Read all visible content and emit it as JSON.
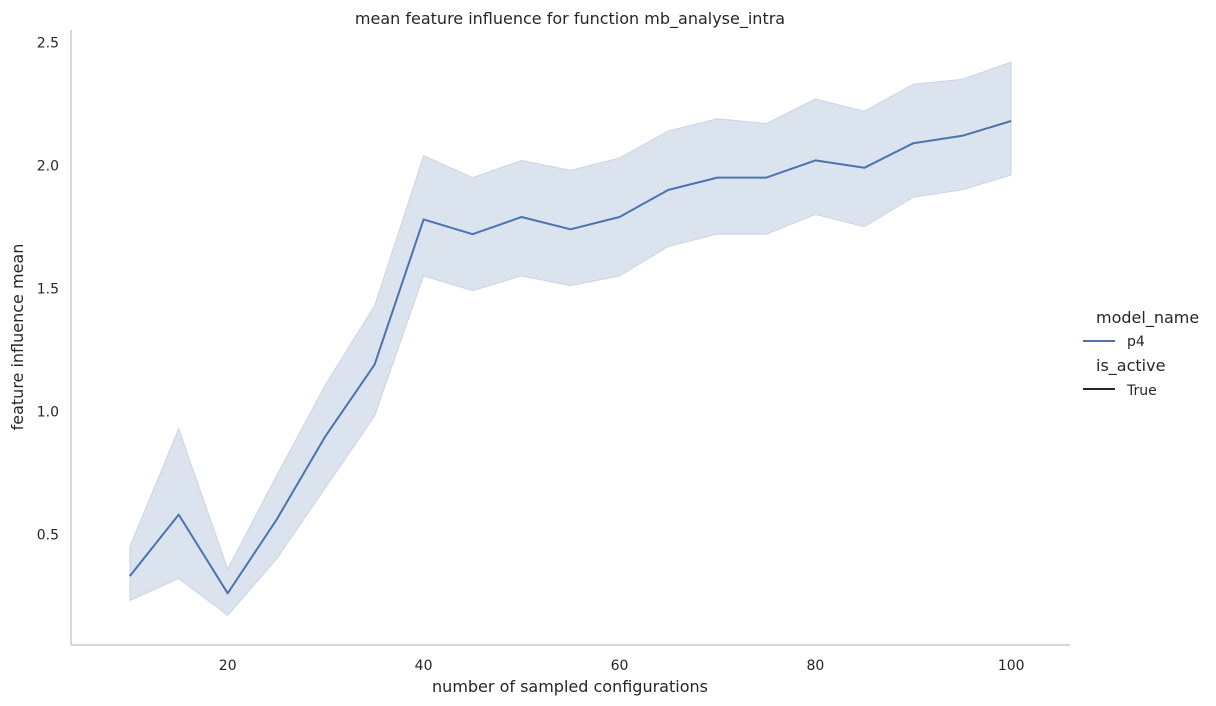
{
  "chart_data": {
    "type": "line",
    "title": "mean feature influence for function mb_analyse_intra",
    "xlabel": "number of sampled configurations",
    "ylabel": "feature influence mean",
    "xlim": [
      4,
      106
    ],
    "ylim": [
      0.05,
      2.55
    ],
    "xticks": [
      20,
      40,
      60,
      80,
      100
    ],
    "yticks": [
      0.5,
      1.0,
      1.5,
      2.0,
      2.5
    ],
    "ytick_labels": [
      "0.5",
      "1.0",
      "1.5",
      "2.0",
      "2.5"
    ],
    "grid": false,
    "legend": {
      "placement": "right",
      "hue_title": "model_name",
      "hue_entry": "p4",
      "style_title": "is_active",
      "style_entry": "True"
    },
    "colors": {
      "line": "#4c72b0",
      "band": "#4c72b0",
      "legend_style": "#262626"
    },
    "series": [
      {
        "name": "p4",
        "x": [
          10,
          15,
          20,
          25,
          30,
          35,
          40,
          45,
          50,
          55,
          60,
          65,
          70,
          75,
          80,
          85,
          90,
          95,
          100
        ],
        "y": [
          0.33,
          0.58,
          0.26,
          0.56,
          0.9,
          1.19,
          1.78,
          1.72,
          1.79,
          1.74,
          1.79,
          1.9,
          1.95,
          1.95,
          2.02,
          1.99,
          2.09,
          2.12,
          2.18
        ],
        "lower": [
          0.23,
          0.32,
          0.17,
          0.4,
          0.69,
          0.98,
          1.55,
          1.49,
          1.55,
          1.51,
          1.55,
          1.67,
          1.72,
          1.72,
          1.8,
          1.75,
          1.87,
          1.9,
          1.96
        ],
        "upper": [
          0.45,
          0.93,
          0.36,
          0.74,
          1.11,
          1.43,
          2.04,
          1.95,
          2.02,
          1.98,
          2.03,
          2.14,
          2.19,
          2.17,
          2.27,
          2.22,
          2.33,
          2.35,
          2.42
        ]
      }
    ]
  }
}
